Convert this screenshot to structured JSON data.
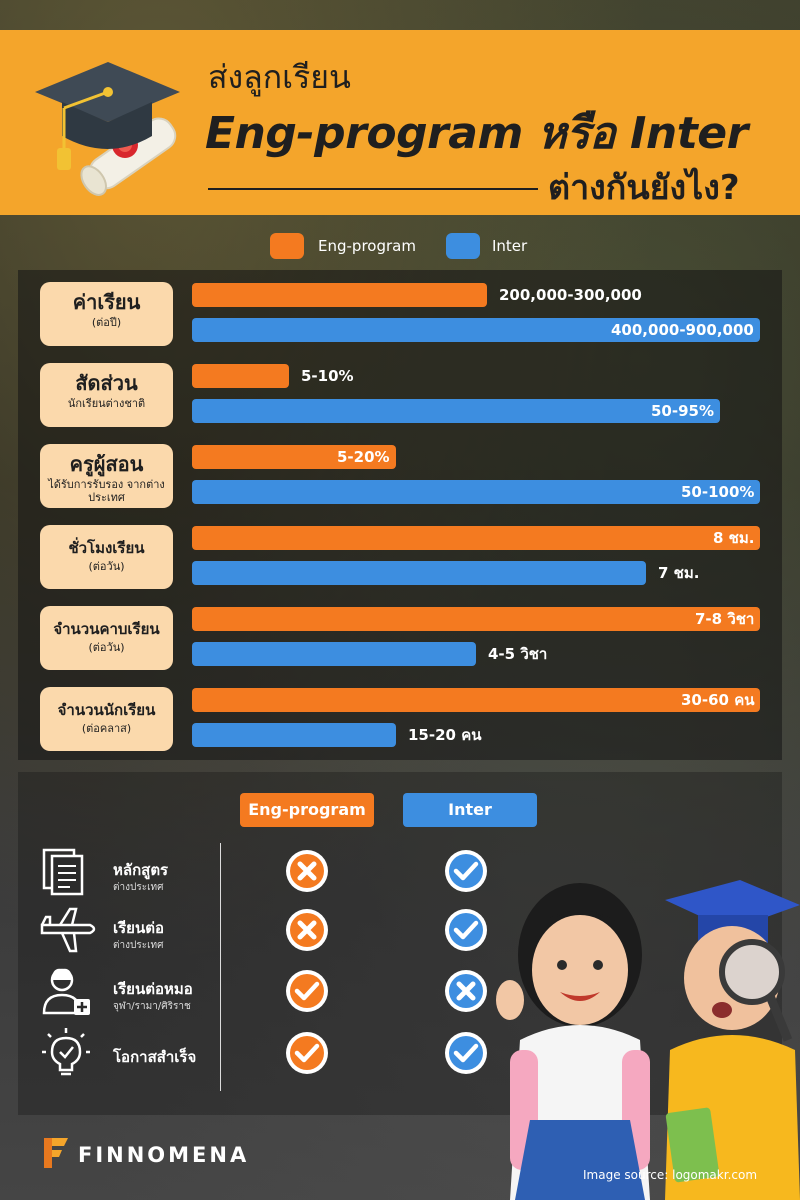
{
  "header": {
    "line1": "ส่งลูกเรียน",
    "line2": "Eng-program หรือ Inter",
    "line3": "ต่างกันยังไง?"
  },
  "colors": {
    "eng": "#f47a20",
    "inter": "#3d8ee0",
    "header_bg": "#f4a52b",
    "label_bg": "#fbd9ac"
  },
  "chart_data": {
    "type": "bar",
    "orientation": "horizontal",
    "series": [
      {
        "name": "Eng-program",
        "color": "#f47a20",
        "labels": [
          "200,000-300,000",
          "5-10%",
          "5-20%",
          "8 ชม.",
          "7-8 วิชา",
          "30-60 คน"
        ],
        "relative": [
          0.52,
          0.17,
          0.36,
          1.0,
          1.0,
          1.0
        ]
      },
      {
        "name": "Inter",
        "color": "#3d8ee0",
        "labels": [
          "400,000-900,000",
          "50-95%",
          "50-100%",
          "7 ชม.",
          "4-5 วิชา",
          "15-20 คน"
        ],
        "relative": [
          1.0,
          0.93,
          1.0,
          0.8,
          0.5,
          0.36
        ]
      }
    ],
    "categories": [
      {
        "title": "ค่าเรียน",
        "sub": "(ต่อปี)"
      },
      {
        "title": "สัดส่วน",
        "sub": "นักเรียนต่างชาติ"
      },
      {
        "title": "ครูผู้สอน",
        "sub": "ได้รับการรับรอง\nจากต่างประเทศ"
      },
      {
        "title": "ชั่วโมงเรียน",
        "sub": "(ต่อวัน)"
      },
      {
        "title": "จำนวนคาบเรียน",
        "sub": "(ต่อวัน)"
      },
      {
        "title": "จำนวนนักเรียน",
        "sub": "(ต่อคลาส)"
      }
    ]
  },
  "compare": {
    "headers": [
      "Eng-program",
      "Inter"
    ],
    "rows": [
      {
        "title": "หลักสูตร",
        "sub": "ต่างประเทศ",
        "icon": "document-stack-icon",
        "eng": "cross",
        "inter": "check"
      },
      {
        "title": "เรียนต่อ",
        "sub": "ต่างประเทศ",
        "icon": "airplane-icon",
        "eng": "cross",
        "inter": "check"
      },
      {
        "title": "เรียนต่อหมอ",
        "sub": "จุฬา/รามา/ศิริราช",
        "icon": "doctor-icon",
        "eng": "check",
        "inter": "cross"
      },
      {
        "title": "โอกาสสำเร็จ",
        "sub": "",
        "icon": "lightbulb-icon",
        "eng": "check",
        "inter": "check"
      }
    ]
  },
  "footer": {
    "brand": "FINNOMENA",
    "source": "Image source: logomakr.com"
  }
}
